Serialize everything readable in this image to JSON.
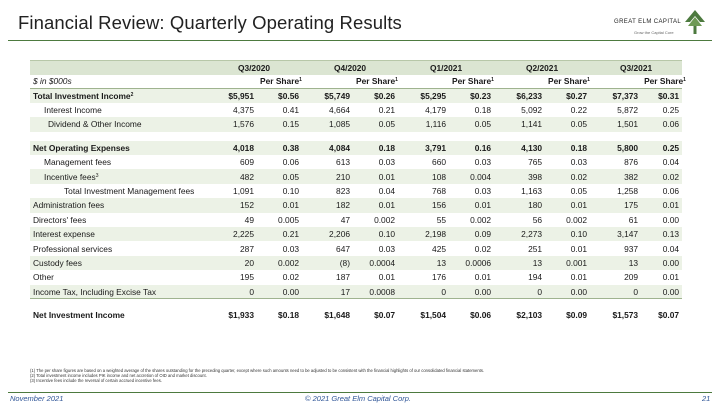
{
  "slide": {
    "title": "Financial Review: Quarterly Operating Results",
    "accent_color": "#4d7a3f",
    "header_band_color": "#dbe5d2",
    "row_band_color": "#ecf2e6"
  },
  "logo": {
    "name": "GREAT ELM CAPITAL",
    "tagline": "Grow the Capital Core",
    "icon": "tree-icon"
  },
  "table": {
    "unit_label": "$ in $000s",
    "per_share_label": "Per Share",
    "per_share_note": "1",
    "quarters": [
      "Q3/2020",
      "Q4/2020",
      "Q1/2021",
      "Q2/2021",
      "Q3/2021"
    ],
    "rows": [
      {
        "label": "Total Investment Income",
        "note": "2",
        "values": [
          "$5,951",
          "$0.56",
          "$5,749",
          "$0.26",
          "$5,295",
          "$0.23",
          "$6,233",
          "$0.27",
          "$7,373",
          "$0.31"
        ]
      },
      {
        "label": "Interest Income",
        "values": [
          "4,375",
          "0.41",
          "4,664",
          "0.21",
          "4,179",
          "0.18",
          "5,092",
          "0.22",
          "5,872",
          "0.25"
        ]
      },
      {
        "label": "Dividend & Other Income",
        "values": [
          "1,576",
          "0.15",
          "1,085",
          "0.05",
          "1,116",
          "0.05",
          "1,141",
          "0.05",
          "1,501",
          "0.06"
        ]
      },
      {
        "label": "Net Operating Expenses",
        "values": [
          "4,018",
          "0.38",
          "4,084",
          "0.18",
          "3,791",
          "0.16",
          "4,130",
          "0.18",
          "5,800",
          "0.25"
        ]
      },
      {
        "label": "Management fees",
        "values": [
          "609",
          "0.06",
          "613",
          "0.03",
          "660",
          "0.03",
          "765",
          "0.03",
          "876",
          "0.04"
        ]
      },
      {
        "label": "Incentive fees",
        "note": "3",
        "values": [
          "482",
          "0.05",
          "210",
          "0.01",
          "108",
          "0.004",
          "398",
          "0.02",
          "382",
          "0.02"
        ]
      },
      {
        "label": "Total Investment Management fees",
        "values": [
          "1,091",
          "0.10",
          "823",
          "0.04",
          "768",
          "0.03",
          "1,163",
          "0.05",
          "1,258",
          "0.06"
        ]
      },
      {
        "label": "Administration fees",
        "values": [
          "152",
          "0.01",
          "182",
          "0.01",
          "156",
          "0.01",
          "180",
          "0.01",
          "175",
          "0.01"
        ]
      },
      {
        "label": "Directors' fees",
        "values": [
          "49",
          "0.005",
          "47",
          "0.002",
          "55",
          "0.002",
          "56",
          "0.002",
          "61",
          "0.00"
        ]
      },
      {
        "label": "Interest expense",
        "values": [
          "2,225",
          "0.21",
          "2,206",
          "0.10",
          "2,198",
          "0.09",
          "2,273",
          "0.10",
          "3,147",
          "0.13"
        ]
      },
      {
        "label": "Professional services",
        "values": [
          "287",
          "0.03",
          "647",
          "0.03",
          "425",
          "0.02",
          "251",
          "0.01",
          "937",
          "0.04"
        ]
      },
      {
        "label": "Custody fees",
        "values": [
          "20",
          "0.002",
          "(8)",
          "0.0004",
          "13",
          "0.0006",
          "13",
          "0.001",
          "13",
          "0.00"
        ]
      },
      {
        "label": "Other",
        "values": [
          "195",
          "0.02",
          "187",
          "0.01",
          "176",
          "0.01",
          "194",
          "0.01",
          "209",
          "0.01"
        ]
      },
      {
        "label": "Income Tax, Including Excise Tax",
        "values": [
          "0",
          "0.00",
          "17",
          "0.0008",
          "0",
          "0.00",
          "0",
          "0.00",
          "0",
          "0.00"
        ]
      },
      {
        "label": "Net Investment Income",
        "values": [
          "$1,933",
          "$0.18",
          "$1,648",
          "$0.07",
          "$1,504",
          "$0.06",
          "$2,103",
          "$0.09",
          "$1,573",
          "$0.07"
        ]
      }
    ]
  },
  "footnotes": [
    "(1) The per share figures are based on a weighted average of the shares outstanding for the preceding quarter, except where such amounts need to be adjusted to be consistent with the financial highlights of our consolidated financial statements.",
    "(2) Total investment income includes PIK income and net accretion of OID and market discount.",
    "(3) Incentive fees include the reversal of certain accrued incentive fees."
  ],
  "footer": {
    "date": "November 2021",
    "copyright": "© 2021 Great Elm Capital Corp.",
    "page": "21"
  }
}
